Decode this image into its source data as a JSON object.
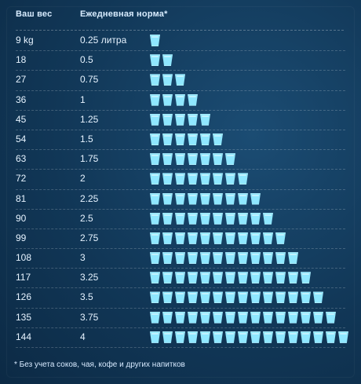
{
  "header": {
    "weight_label": "Ваш вес",
    "norm_label": "Ежедневная норма*"
  },
  "footnote": "* Без учета соков, чая, кофе и других напитков",
  "colors": {
    "background": "#123a5d",
    "glass": "#8fe7ff",
    "text": "#e6f3ff"
  },
  "rows": [
    {
      "weight": "9 kg",
      "norm": "0.25 литра",
      "glasses": 1
    },
    {
      "weight": "18",
      "norm": "0.5",
      "glasses": 2
    },
    {
      "weight": "27",
      "norm": "0.75",
      "glasses": 3
    },
    {
      "weight": "36",
      "norm": "1",
      "glasses": 4
    },
    {
      "weight": "45",
      "norm": "1.25",
      "glasses": 5
    },
    {
      "weight": "54",
      "norm": "1.5",
      "glasses": 6
    },
    {
      "weight": "63",
      "norm": "1.75",
      "glasses": 7
    },
    {
      "weight": "72",
      "norm": "2",
      "glasses": 8
    },
    {
      "weight": "81",
      "norm": "2.25",
      "glasses": 9
    },
    {
      "weight": "90",
      "norm": "2.5",
      "glasses": 10
    },
    {
      "weight": "99",
      "norm": "2.75",
      "glasses": 11
    },
    {
      "weight": "108",
      "norm": "3",
      "glasses": 12
    },
    {
      "weight": "117",
      "norm": "3.25",
      "glasses": 13
    },
    {
      "weight": "126",
      "norm": "3.5",
      "glasses": 14
    },
    {
      "weight": "135",
      "norm": "3.75",
      "glasses": 15
    },
    {
      "weight": "144",
      "norm": "4",
      "glasses": 16
    }
  ],
  "chart_data": {
    "type": "table",
    "columns": [
      "Ваш вес",
      "Ежедневная норма*"
    ],
    "rows": [
      [
        "9 kg",
        "0.25 литра"
      ],
      [
        "18",
        "0.5"
      ],
      [
        "27",
        "0.75"
      ],
      [
        "36",
        "1"
      ],
      [
        "45",
        "1.25"
      ],
      [
        "54",
        "1.5"
      ],
      [
        "63",
        "1.75"
      ],
      [
        "72",
        "2"
      ],
      [
        "81",
        "2.25"
      ],
      [
        "90",
        "2.5"
      ],
      [
        "99",
        "2.75"
      ],
      [
        "108",
        "3"
      ],
      [
        "117",
        "3.25"
      ],
      [
        "126",
        "3.5"
      ],
      [
        "135",
        "3.75"
      ],
      [
        "144",
        "4"
      ]
    ],
    "glasses_per_row": [
      1,
      2,
      3,
      4,
      5,
      6,
      7,
      8,
      9,
      10,
      11,
      12,
      13,
      14,
      15,
      16
    ]
  }
}
